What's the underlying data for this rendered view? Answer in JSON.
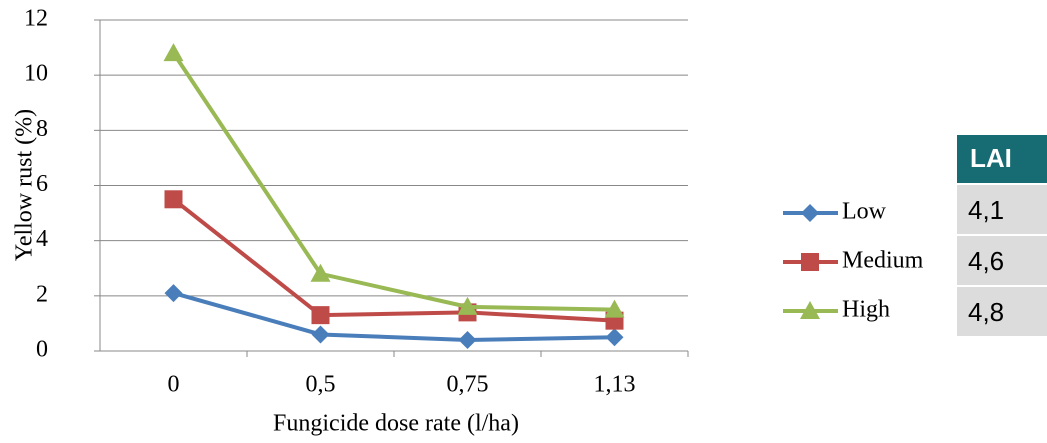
{
  "chart_data": {
    "type": "line",
    "x_label": "Fungicide dose rate (l/ha)",
    "y_label": "Yellow rust (%)",
    "categories": [
      "0",
      "0,5",
      "0,75",
      "1,13"
    ],
    "series": [
      {
        "name": "Low",
        "color": "#4a7ebb",
        "marker": "diamond",
        "values": [
          2.1,
          0.6,
          0.4,
          0.5
        ]
      },
      {
        "name": "Medium",
        "color": "#be4b48",
        "marker": "square",
        "values": [
          5.5,
          1.3,
          1.4,
          1.1
        ]
      },
      {
        "name": "High",
        "color": "#98b954",
        "marker": "triangle",
        "values": [
          10.8,
          2.8,
          1.6,
          1.5
        ]
      }
    ],
    "ylim": [
      0,
      12
    ],
    "yticks": [
      0,
      2,
      4,
      6,
      8,
      10,
      12
    ],
    "grid": true
  },
  "table": {
    "header": "LAI",
    "rows": [
      "4,1",
      "4,6",
      "4,8"
    ]
  }
}
